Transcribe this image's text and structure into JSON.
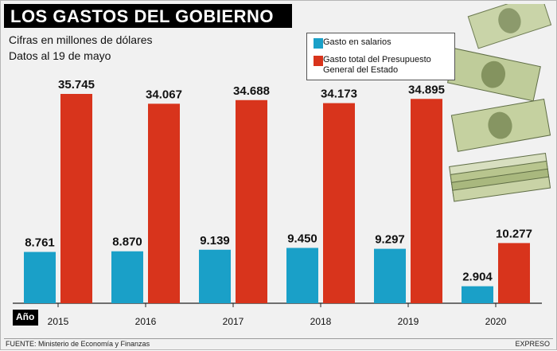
{
  "header": {
    "title": "LOS GASTOS DEL GOBIERNO",
    "subtitle_1": "Cifras en millones de dólares",
    "subtitle_2": "Datos al 19 de mayo"
  },
  "legend": {
    "salaries": "Gasto en salarios",
    "budget": "Gasto total del Presupuesto General del Estado"
  },
  "axis_label": "Año",
  "footer": {
    "source": "FUENTE: Ministerio de Economía y Finanzas",
    "brand": "EXPRESO"
  },
  "colors": {
    "salaries": "#1aa0c8",
    "budget": "#d8341c",
    "background": "#f1f1f1"
  },
  "chart_data": {
    "type": "bar",
    "categories": [
      "2015",
      "2016",
      "2017",
      "2018",
      "2019",
      "2020"
    ],
    "series": [
      {
        "name": "Gasto en salarios",
        "values": [
          8761,
          8870,
          9139,
          9450,
          9297,
          2904
        ],
        "labels": [
          "8.761",
          "8.870",
          "9.139",
          "9.450",
          "9.297",
          "2.904"
        ]
      },
      {
        "name": "Gasto total del Presupuesto General del Estado",
        "values": [
          35745,
          34067,
          34688,
          34173,
          34895,
          10277
        ],
        "labels": [
          "35.745",
          "34.067",
          "34.688",
          "34.173",
          "34.895",
          "10.277"
        ]
      }
    ],
    "xlabel": "Año",
    "ylabel": "",
    "ylim": [
      0,
      35745
    ],
    "grid": false,
    "legend": "top-right"
  }
}
